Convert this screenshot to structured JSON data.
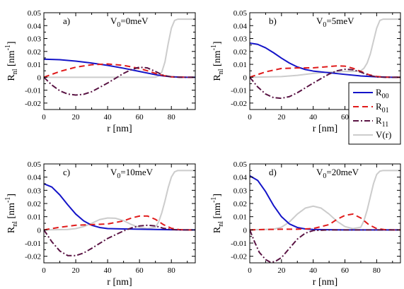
{
  "figure": {
    "legend_position": "right-center",
    "series_styles": [
      {
        "name": "R",
        "sub": "00",
        "color": "#1414c8",
        "dash": "solid",
        "width": 2
      },
      {
        "name": "R",
        "sub": "01",
        "color": "#e01b1b",
        "dash": "dashed",
        "width": 2
      },
      {
        "name": "R",
        "sub": "11",
        "color": "#5a1444",
        "dash": "dashdot",
        "width": 2
      },
      {
        "name": "V(r)",
        "sub": "",
        "color": "#cccccc",
        "dash": "solid",
        "width": 2
      }
    ]
  },
  "chart_data": [
    {
      "type": "line",
      "panel": "a)",
      "annotation": {
        "base": "V",
        "sub": "0",
        "rest": "=0meV"
      },
      "xlabel": "r [nm]",
      "ylabel": {
        "base": "R",
        "sub": "nl",
        "rest": " [nm",
        "sup": "-1",
        "end": "]"
      },
      "xlim": [
        0,
        95
      ],
      "ylim": [
        -0.025,
        0.05
      ],
      "xticks": [
        0,
        20,
        40,
        60,
        80
      ],
      "yticks": [
        -0.02,
        -0.01,
        0,
        0.01,
        0.02,
        0.03,
        0.04,
        0.05
      ],
      "ytick_labels": [
        "-0.02",
        "-0.01",
        "0",
        "0.01",
        "0.02",
        "0.03",
        "0.04",
        "0.05"
      ],
      "series": [
        {
          "name": "R00",
          "x": [
            0,
            10,
            20,
            30,
            40,
            50,
            60,
            70,
            75,
            80,
            85,
            90,
            95
          ],
          "y": [
            0.014,
            0.0136,
            0.0125,
            0.011,
            0.0092,
            0.007,
            0.0045,
            0.002,
            0.001,
            0.0004,
            0.0001,
            0,
            0
          ]
        },
        {
          "name": "R01",
          "x": [
            0,
            10,
            20,
            30,
            40,
            50,
            60,
            65,
            70,
            75,
            80,
            85,
            90,
            95
          ],
          "y": [
            0,
            0.0045,
            0.0078,
            0.0097,
            0.0103,
            0.0092,
            0.0068,
            0.005,
            0.003,
            0.0013,
            0.0003,
            0.0001,
            0,
            0
          ]
        },
        {
          "name": "R11",
          "x": [
            0,
            5,
            10,
            15,
            20,
            25,
            30,
            40,
            50,
            55,
            60,
            65,
            70,
            75,
            80,
            85,
            90,
            95
          ],
          "y": [
            0,
            -0.006,
            -0.0105,
            -0.013,
            -0.0138,
            -0.0132,
            -0.0112,
            -0.0045,
            0.003,
            0.006,
            0.0078,
            0.0072,
            0.0045,
            0.0015,
            0.0003,
            0,
            0,
            0
          ]
        },
        {
          "name": "V(r)",
          "x": [
            0,
            70,
            72,
            74,
            76,
            78,
            80,
            82,
            84,
            86,
            95
          ],
          "y": [
            0,
            0,
            0.001,
            0.004,
            0.012,
            0.026,
            0.038,
            0.044,
            0.045,
            0.045,
            0.045
          ]
        }
      ]
    },
    {
      "type": "line",
      "panel": "b)",
      "annotation": {
        "base": "V",
        "sub": "0",
        "rest": "=5meV"
      },
      "xlabel": "r [nm]",
      "ylabel": {
        "base": "R",
        "sub": "nl",
        "rest": " [nm",
        "sup": "-1",
        "end": "]"
      },
      "xlim": [
        0,
        95
      ],
      "ylim": [
        -0.025,
        0.05
      ],
      "xticks": [
        0,
        20,
        40,
        60,
        80
      ],
      "yticks": [
        -0.02,
        -0.01,
        0,
        0.01,
        0.02,
        0.03,
        0.04,
        0.05
      ],
      "ytick_labels": [
        "-0.02",
        "-0.01",
        "0",
        "0.01",
        "0.02",
        "0.03",
        "0.04",
        "0.05"
      ],
      "series": [
        {
          "name": "R00",
          "x": [
            0,
            5,
            10,
            15,
            20,
            25,
            30,
            35,
            40,
            50,
            60,
            70,
            80,
            90,
            95
          ],
          "y": [
            0.0265,
            0.0255,
            0.0228,
            0.019,
            0.0148,
            0.011,
            0.008,
            0.006,
            0.0048,
            0.0035,
            0.0022,
            0.001,
            0.0003,
            0,
            0
          ]
        },
        {
          "name": "R01",
          "x": [
            0,
            10,
            20,
            30,
            40,
            50,
            55,
            60,
            65,
            70,
            75,
            80,
            85,
            90,
            95
          ],
          "y": [
            0,
            0.0042,
            0.0068,
            0.0072,
            0.0073,
            0.0083,
            0.0088,
            0.0086,
            0.007,
            0.0045,
            0.002,
            0.0006,
            0.0001,
            0,
            0
          ]
        },
        {
          "name": "R11",
          "x": [
            0,
            5,
            10,
            15,
            20,
            25,
            30,
            40,
            50,
            55,
            60,
            65,
            70,
            75,
            80,
            85,
            90,
            95
          ],
          "y": [
            0,
            -0.0075,
            -0.013,
            -0.0158,
            -0.0163,
            -0.015,
            -0.012,
            -0.0045,
            0.0025,
            0.005,
            0.0062,
            0.0058,
            0.004,
            0.0015,
            0.0003,
            0,
            0,
            0
          ]
        },
        {
          "name": "V(r)",
          "x": [
            0,
            20,
            30,
            40,
            50,
            60,
            65,
            70,
            72,
            74,
            76,
            78,
            80,
            82,
            84,
            86,
            95
          ],
          "y": [
            0,
            0.0005,
            0.0015,
            0.003,
            0.004,
            0.0045,
            0.0045,
            0.005,
            0.007,
            0.011,
            0.018,
            0.028,
            0.038,
            0.044,
            0.045,
            0.045,
            0.045
          ]
        }
      ]
    },
    {
      "type": "line",
      "panel": "c)",
      "annotation": {
        "base": "V",
        "sub": "0",
        "rest": "=10meV"
      },
      "xlabel": "r [nm]",
      "ylabel": {
        "base": "R",
        "sub": "nl",
        "rest": " [nm",
        "sup": "-1",
        "end": "]"
      },
      "xlim": [
        0,
        95
      ],
      "ylim": [
        -0.025,
        0.05
      ],
      "xticks": [
        0,
        20,
        40,
        60,
        80
      ],
      "yticks": [
        -0.02,
        -0.01,
        0,
        0.01,
        0.02,
        0.03,
        0.04,
        0.05
      ],
      "ytick_labels": [
        "-0.02",
        "-0.01",
        "0",
        "0.01",
        "0.02",
        "0.03",
        "0.04",
        "0.05"
      ],
      "series": [
        {
          "name": "R00",
          "x": [
            0,
            5,
            10,
            15,
            20,
            25,
            30,
            35,
            40,
            50,
            60,
            70,
            80,
            90,
            95
          ],
          "y": [
            0.035,
            0.0325,
            0.0265,
            0.019,
            0.012,
            0.0068,
            0.0035,
            0.0018,
            0.001,
            0.0007,
            0.0005,
            0.0003,
            0.0001,
            0,
            0
          ]
        },
        {
          "name": "R01",
          "x": [
            0,
            10,
            20,
            30,
            40,
            50,
            55,
            60,
            65,
            70,
            75,
            80,
            85,
            90,
            95
          ],
          "y": [
            0,
            0.002,
            0.0035,
            0.004,
            0.0045,
            0.0068,
            0.009,
            0.0105,
            0.0105,
            0.008,
            0.004,
            0.0012,
            0.0002,
            0,
            0
          ]
        },
        {
          "name": "R11",
          "x": [
            0,
            5,
            10,
            15,
            20,
            25,
            30,
            40,
            50,
            55,
            60,
            65,
            70,
            75,
            80,
            85,
            90,
            95
          ],
          "y": [
            0,
            -0.009,
            -0.016,
            -0.0195,
            -0.0195,
            -0.0175,
            -0.014,
            -0.0065,
            -0.0008,
            0.0015,
            0.003,
            0.0035,
            0.003,
            0.0012,
            0.0003,
            0,
            0,
            0
          ]
        },
        {
          "name": "V(r)",
          "x": [
            0,
            15,
            20,
            25,
            30,
            35,
            40,
            45,
            50,
            55,
            60,
            65,
            70,
            72,
            74,
            76,
            78,
            80,
            82,
            84,
            86,
            95
          ],
          "y": [
            0,
            0.0003,
            0.001,
            0.0025,
            0.005,
            0.0078,
            0.009,
            0.0088,
            0.007,
            0.004,
            0.0018,
            0.001,
            0.002,
            0.006,
            0.013,
            0.022,
            0.032,
            0.04,
            0.044,
            0.045,
            0.045,
            0.045
          ]
        }
      ]
    },
    {
      "type": "line",
      "panel": "d)",
      "annotation": {
        "base": "V",
        "sub": "0",
        "rest": "=20meV"
      },
      "xlabel": "r [nm]",
      "ylabel": {
        "base": "R",
        "sub": "nl",
        "rest": " [nm",
        "sup": "-1",
        "end": "]"
      },
      "xlim": [
        0,
        95
      ],
      "ylim": [
        -0.025,
        0.05
      ],
      "xticks": [
        0,
        20,
        40,
        60,
        80
      ],
      "yticks": [
        -0.02,
        -0.01,
        0,
        0.01,
        0.02,
        0.03,
        0.04,
        0.05
      ],
      "ytick_labels": [
        "-0.02",
        "-0.01",
        "0",
        "0.01",
        "0.02",
        "0.03",
        "0.04",
        "0.05"
      ],
      "series": [
        {
          "name": "R00",
          "x": [
            0,
            5,
            10,
            15,
            20,
            25,
            30,
            35,
            40,
            50,
            60,
            70,
            80,
            90,
            95
          ],
          "y": [
            0.041,
            0.0375,
            0.029,
            0.0185,
            0.01,
            0.0045,
            0.0018,
            0.0007,
            0.0003,
            0.0001,
            0,
            0,
            0,
            0,
            0
          ]
        },
        {
          "name": "R01",
          "x": [
            0,
            10,
            20,
            30,
            40,
            50,
            55,
            60,
            65,
            70,
            75,
            80,
            85,
            90,
            95
          ],
          "y": [
            0,
            0.0003,
            0.0005,
            0.0005,
            0.001,
            0.004,
            0.008,
            0.011,
            0.012,
            0.009,
            0.004,
            0.001,
            0.0002,
            0,
            0
          ]
        },
        {
          "name": "R11",
          "x": [
            0,
            3,
            6,
            10,
            13,
            16,
            20,
            25,
            30,
            35,
            40,
            50,
            60,
            70,
            80,
            90,
            95
          ],
          "y": [
            0,
            -0.009,
            -0.017,
            -0.0225,
            -0.0245,
            -0.024,
            -0.021,
            -0.014,
            -0.007,
            -0.0025,
            -0.0005,
            0,
            0,
            0,
            0,
            0,
            0
          ]
        },
        {
          "name": "V(r)",
          "x": [
            0,
            15,
            20,
            25,
            30,
            35,
            40,
            45,
            50,
            55,
            60,
            65,
            70,
            72,
            74,
            76,
            78,
            80,
            82,
            84,
            86,
            95
          ],
          "y": [
            0,
            0.0005,
            0.002,
            0.006,
            0.012,
            0.0165,
            0.018,
            0.0165,
            0.012,
            0.0065,
            0.0025,
            0.001,
            0.002,
            0.007,
            0.015,
            0.025,
            0.035,
            0.042,
            0.0445,
            0.045,
            0.045,
            0.045
          ]
        }
      ]
    }
  ]
}
